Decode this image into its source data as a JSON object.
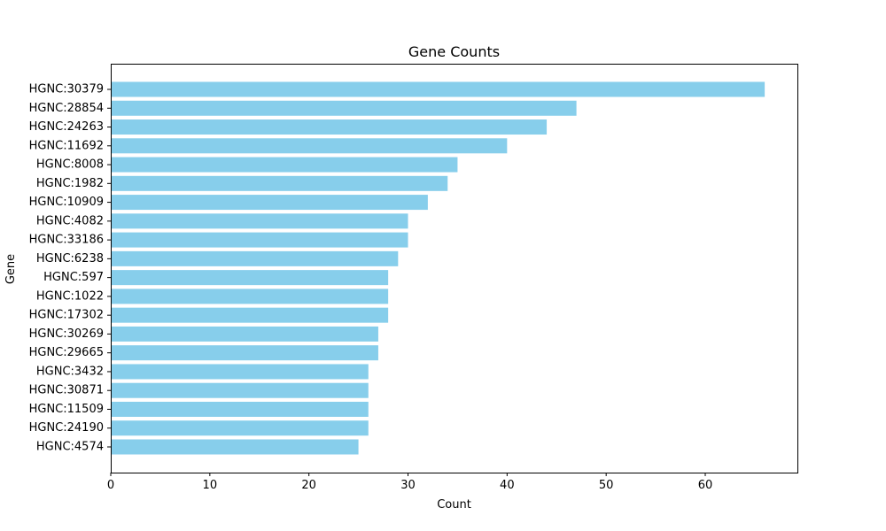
{
  "chart_data": {
    "type": "bar",
    "orientation": "horizontal",
    "title": "Gene Counts",
    "xlabel": "Count",
    "ylabel": "Gene",
    "xlim": [
      0,
      69.3
    ],
    "xticks": [
      0,
      10,
      20,
      30,
      40,
      50,
      60
    ],
    "grid": false,
    "bar_color": "#87ceeb",
    "categories": [
      "HGNC:30379",
      "HGNC:28854",
      "HGNC:24263",
      "HGNC:11692",
      "HGNC:8008",
      "HGNC:1982",
      "HGNC:10909",
      "HGNC:4082",
      "HGNC:33186",
      "HGNC:6238",
      "HGNC:597",
      "HGNC:1022",
      "HGNC:17302",
      "HGNC:30269",
      "HGNC:29665",
      "HGNC:3432",
      "HGNC:30871",
      "HGNC:11509",
      "HGNC:24190",
      "HGNC:4574"
    ],
    "values": [
      66,
      47,
      44,
      40,
      35,
      34,
      32,
      30,
      30,
      29,
      28,
      28,
      28,
      27,
      27,
      26,
      26,
      26,
      26,
      25
    ]
  }
}
